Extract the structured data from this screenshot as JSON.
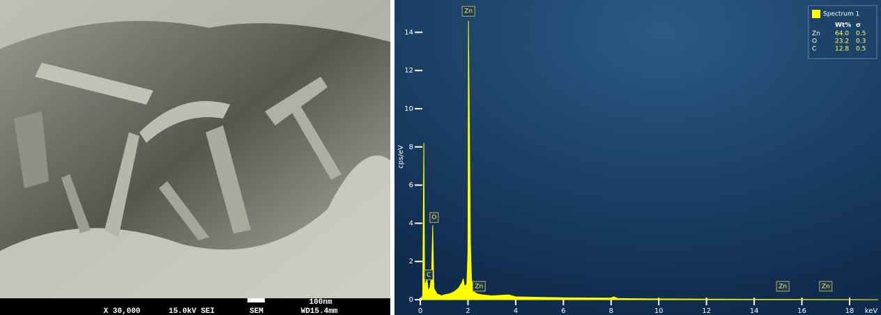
{
  "sem": {
    "magnification": "X 30,000",
    "voltage": "15.0kV SEI",
    "instrument": "SEM",
    "scale": "100nm",
    "working_distance": "WD15.4mm"
  },
  "chart_data": {
    "type": "area",
    "y_label": "cps/eV",
    "x_label": "keV",
    "xlim": [
      0,
      19.2
    ],
    "ylim": [
      0,
      15.4
    ],
    "xticks": [
      0,
      2,
      4,
      6,
      8,
      10,
      12,
      14,
      16,
      18
    ],
    "yticks": [
      0,
      2,
      4,
      6,
      8,
      10,
      12,
      14
    ],
    "series": [
      {
        "name": "Spectrum 1",
        "color": "#ffff00",
        "x": [
          0,
          0.1,
          0.15,
          0.18,
          0.24,
          0.28,
          0.33,
          0.4,
          0.47,
          0.52,
          0.57,
          0.7,
          0.9,
          1.0,
          1.2,
          1.4,
          1.6,
          1.75,
          1.8,
          1.85,
          1.95,
          2.0,
          2.02,
          2.06,
          2.1,
          2.15,
          2.25,
          2.4,
          2.6,
          3.0,
          3.7,
          4,
          6,
          8.0,
          8.1,
          8.3,
          10,
          14,
          19.2
        ],
        "values": [
          0,
          0.2,
          8.2,
          0.8,
          0.9,
          1.1,
          0.5,
          0.6,
          1.2,
          3.9,
          0.6,
          0.3,
          0.2,
          0.25,
          0.3,
          0.4,
          0.6,
          0.9,
          1.1,
          0.7,
          0.8,
          2.5,
          14.6,
          9,
          3,
          1,
          0.4,
          0.3,
          0.25,
          0.2,
          0.25,
          0.15,
          0.1,
          0.08,
          0.15,
          0.06,
          0.04,
          0.02,
          0
        ]
      }
    ],
    "annotations": [
      {
        "label": "C",
        "x": 0.35,
        "y": 1.3
      },
      {
        "label": "O",
        "x": 0.58,
        "y": 4.3
      },
      {
        "label": "Zn",
        "x": 2.02,
        "y": 15.1
      },
      {
        "label": "Zn",
        "x": 2.46,
        "y": 0.7
      },
      {
        "label": "Zn",
        "x": 15.2,
        "y": 0.7
      },
      {
        "label": "Zn",
        "x": 17.0,
        "y": 0.7
      }
    ],
    "legend_table": {
      "columns": [
        "Wt%",
        "σ"
      ],
      "rows": [
        [
          "Zn",
          "64.0",
          "0.5"
        ],
        [
          "O",
          "23.2",
          "0.3"
        ],
        [
          "C",
          "12.8",
          "0.5"
        ]
      ]
    }
  }
}
